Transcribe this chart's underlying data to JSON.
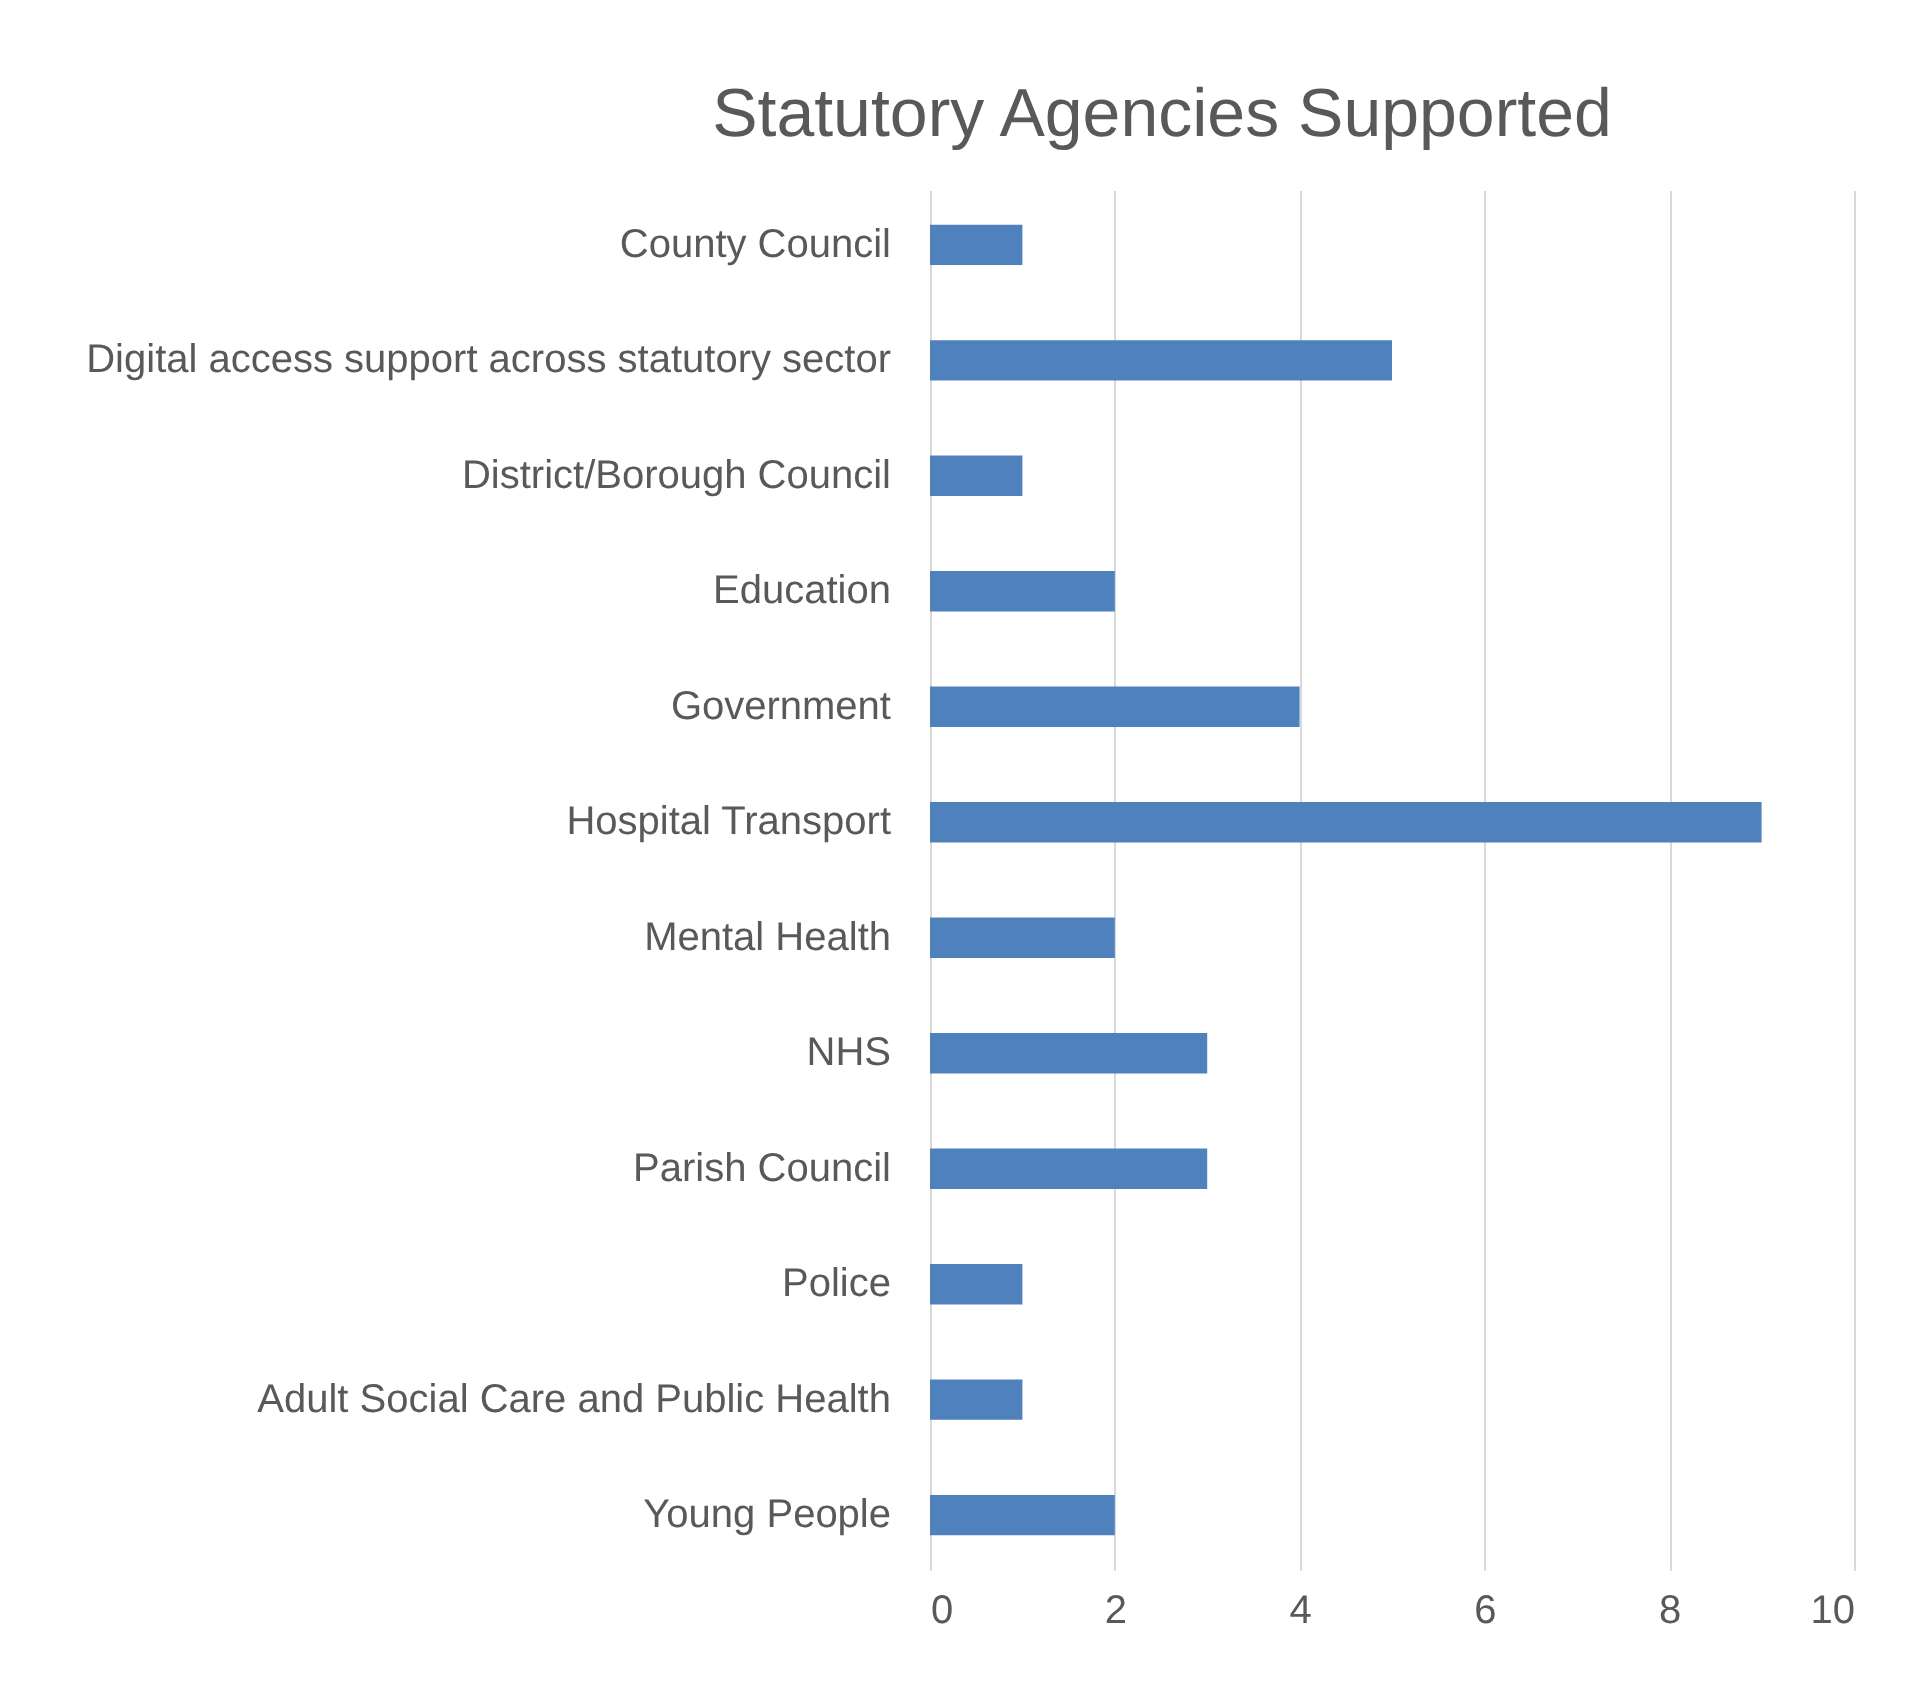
{
  "chart_data": {
    "type": "bar",
    "orientation": "horizontal",
    "title": "Statutory Agencies Supported",
    "categories": [
      "County Council",
      "Digital access support across statutory sector",
      "District/Borough Council",
      "Education",
      "Government",
      "Hospital Transport",
      "Mental Health",
      "NHS",
      "Parish Council",
      "Police",
      "Adult Social Care and Public Health",
      "Young People"
    ],
    "values": [
      1,
      5,
      1,
      2,
      4,
      9,
      2,
      3,
      3,
      1,
      1,
      2
    ],
    "color": "#4f81bd",
    "xlim": [
      0,
      10
    ],
    "xticks": [
      0,
      2,
      4,
      6,
      8,
      10
    ],
    "grid": "x"
  }
}
